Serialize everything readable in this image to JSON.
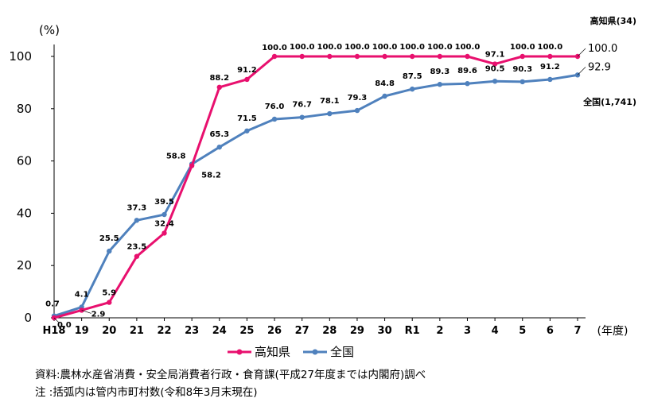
{
  "chart_data": {
    "type": "line",
    "y_unit_label": "(%)",
    "x_unit_label": "(年度)",
    "ylim": [
      0,
      100
    ],
    "yticks": [
      0,
      20,
      40,
      60,
      80,
      100
    ],
    "categories": [
      "H18",
      "19",
      "20",
      "21",
      "22",
      "23",
      "24",
      "25",
      "26",
      "27",
      "28",
      "29",
      "30",
      "R1",
      "2",
      "3",
      "4",
      "5",
      "6",
      "7"
    ],
    "series": [
      {
        "name": "高知県",
        "color": "#e8106e",
        "values": [
          0.0,
          2.9,
          5.9,
          23.5,
          32.4,
          58.2,
          88.2,
          91.2,
          100.0,
          100.0,
          100.0,
          100.0,
          100.0,
          100.0,
          100.0,
          100.0,
          97.1,
          100.0,
          100.0,
          100.0
        ],
        "labels": [
          "0.0",
          "2.9",
          "5.9",
          "23.5",
          "32.4",
          "58.2",
          "88.2",
          "91.2",
          "100.0",
          "100.0",
          "100.0",
          "100.0",
          "100.0",
          "100.0",
          "100.0",
          "100.0",
          "97.1",
          "100.0",
          "100.0",
          "100.0"
        ],
        "end_name": "高知県(34)"
      },
      {
        "name": "全国",
        "color": "#4f81bd",
        "values": [
          0.7,
          4.1,
          25.5,
          37.3,
          39.5,
          58.8,
          65.3,
          71.5,
          76.0,
          76.7,
          78.1,
          79.3,
          84.8,
          87.5,
          89.3,
          89.6,
          90.5,
          90.3,
          91.2,
          92.9
        ],
        "labels": [
          "0.7",
          "4.1",
          "25.5",
          "37.3",
          "39.5",
          "58.8",
          "65.3",
          "71.5",
          "76.0",
          "76.7",
          "78.1",
          "79.3",
          "84.8",
          "87.5",
          "89.3",
          "89.6",
          "90.5",
          "90.3",
          "91.2",
          "92.9"
        ],
        "end_name": "全国(1,741)"
      }
    ],
    "legend": [
      "高知県",
      "全国"
    ]
  },
  "notes": {
    "source": "資料:農林水産省消費・安全局消費者行政・食育課(平成27年度までは内閣府)調べ",
    "note": "注 :括弧内は管内市町村数(令和8年3月末現在)"
  }
}
